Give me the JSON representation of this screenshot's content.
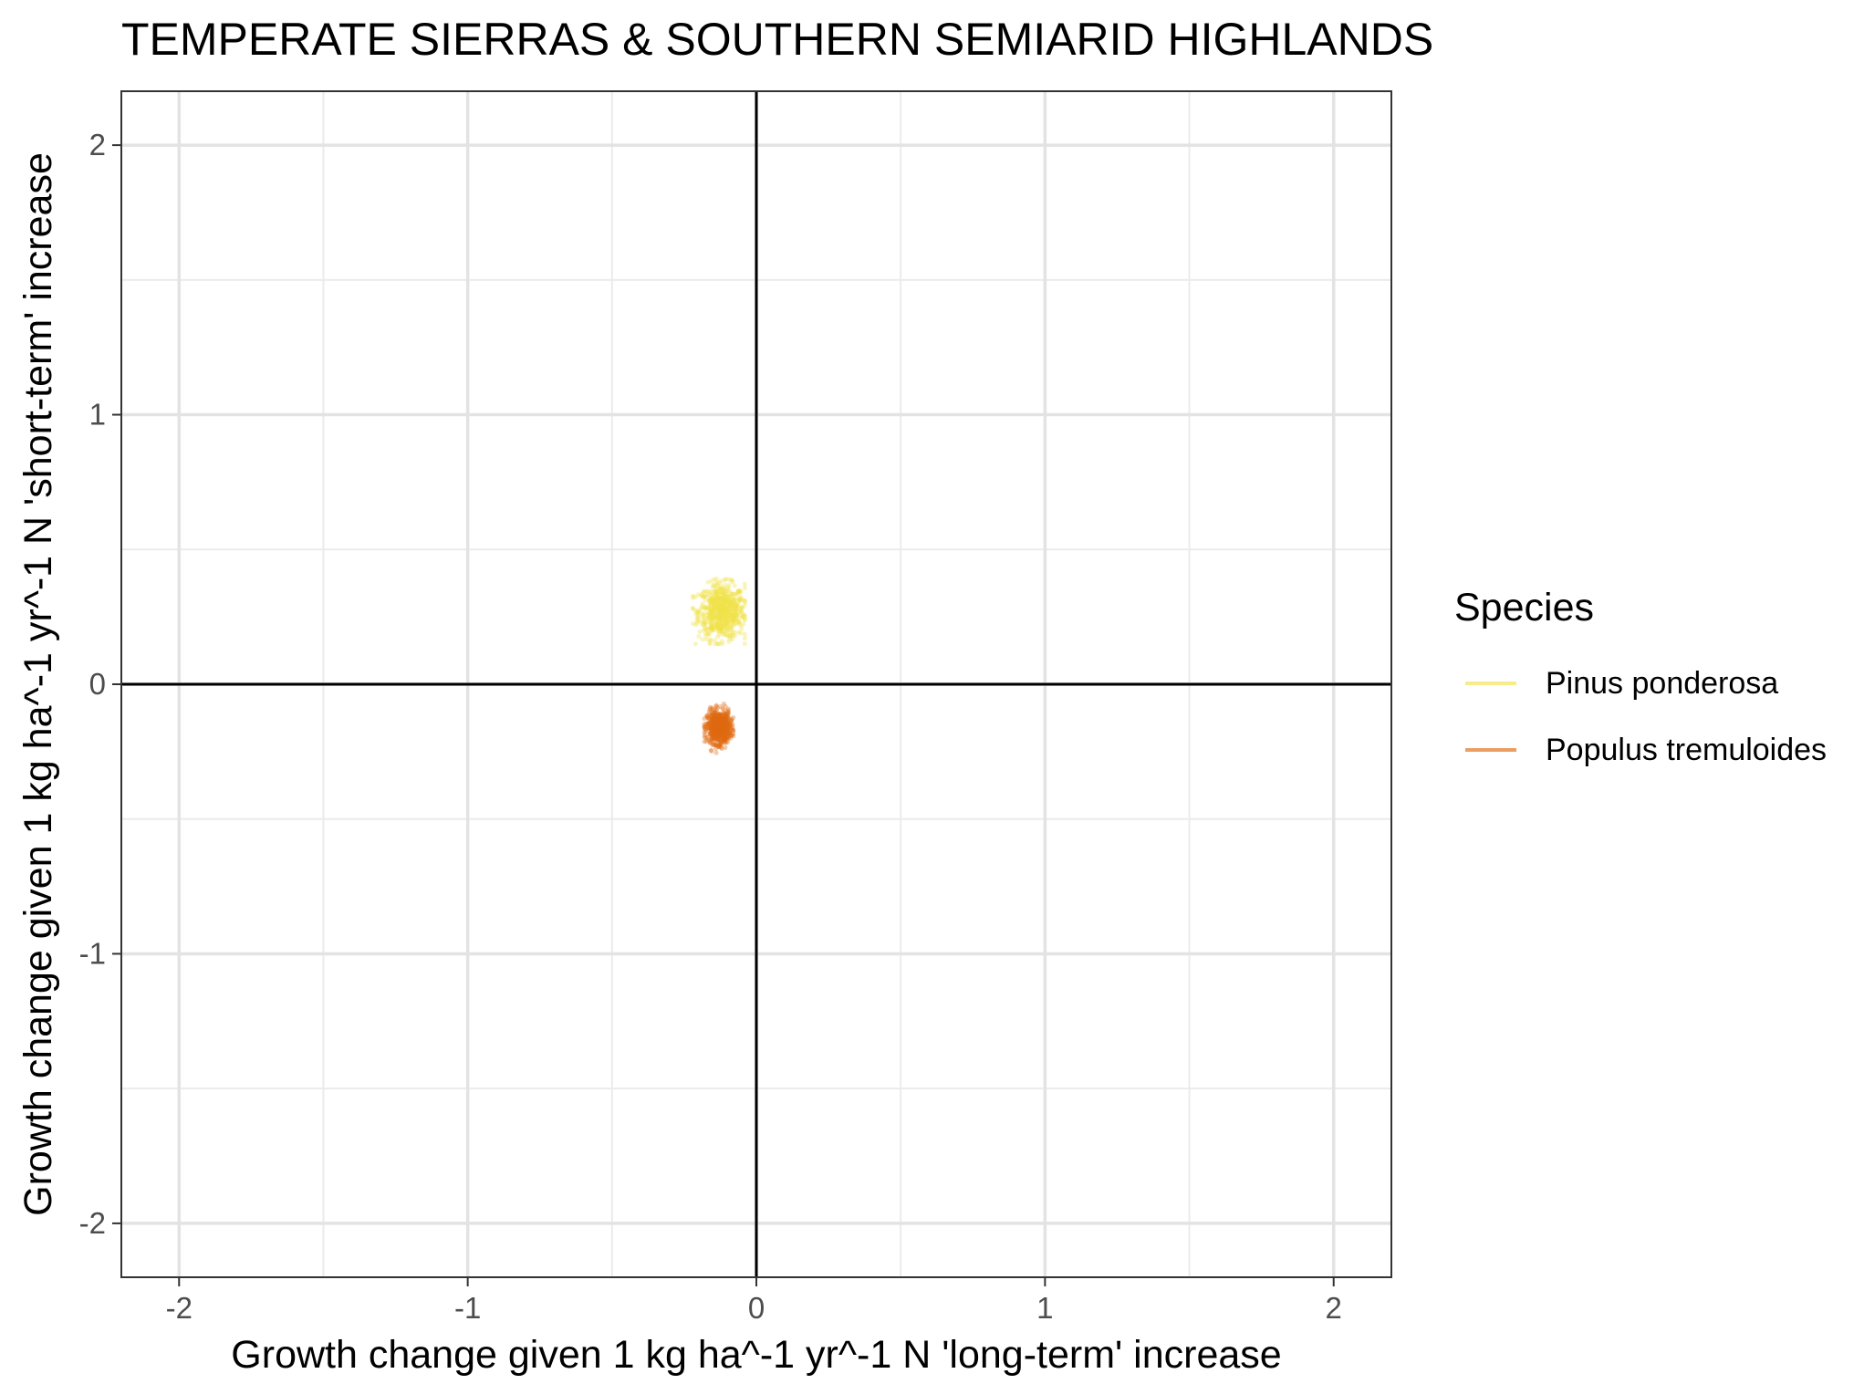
{
  "chart_data": {
    "type": "scatter",
    "title": "TEMPERATE SIERRAS & SOUTHERN SEMIARID HIGHLANDS",
    "xlabel": "Growth change given 1 kg ha^-1 yr^-1 N 'long-term' increase",
    "ylabel": "Growth change given 1 kg ha^-1 yr^-1 N 'short-term' increase",
    "xlim": [
      -2.2,
      2.2
    ],
    "ylim": [
      -2.2,
      2.2
    ],
    "xticks": [
      -2,
      -1,
      0,
      1,
      2
    ],
    "yticks": [
      -2,
      -1,
      0,
      1,
      2
    ],
    "xtick_labels": [
      "-2",
      "-1",
      "0",
      "1",
      "2"
    ],
    "ytick_labels": [
      "-2",
      "-1",
      "0",
      "1",
      "2"
    ],
    "grid": true,
    "reference_lines": {
      "x": 0,
      "y": 0
    },
    "legend": {
      "title": "Species",
      "placement": "right"
    },
    "series": [
      {
        "name": "Pinus ponderosa",
        "color": "#F2E24A",
        "center": {
          "x": -0.12,
          "y": 0.27
        },
        "spread": {
          "x": 0.04,
          "y": 0.05
        },
        "x_range": [
          -0.22,
          -0.04
        ],
        "y_range": [
          0.15,
          0.39
        ]
      },
      {
        "name": "Populus tremuloides",
        "color": "#E06A10",
        "center": {
          "x": -0.13,
          "y": -0.16
        },
        "spread": {
          "x": 0.02,
          "y": 0.03
        },
        "x_range": [
          -0.18,
          -0.08
        ],
        "y_range": [
          -0.28,
          -0.05
        ]
      }
    ]
  }
}
